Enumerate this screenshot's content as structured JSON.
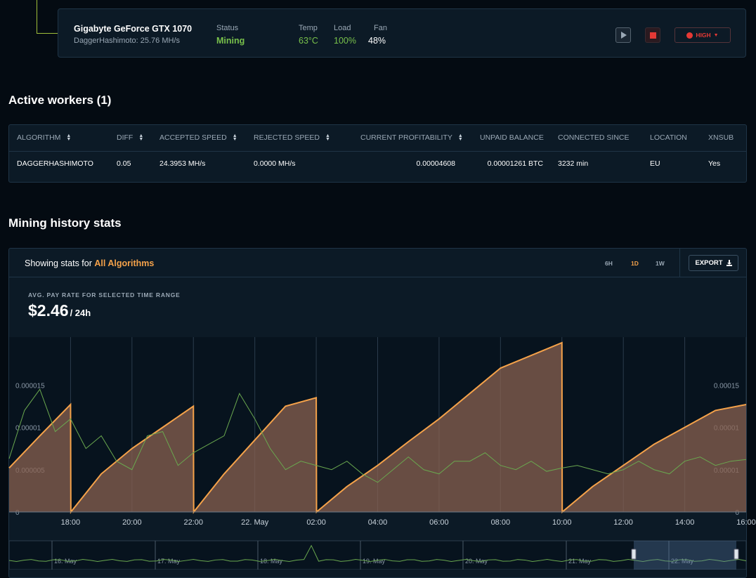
{
  "device": {
    "name": "Gigabyte GeForce GTX 1070",
    "algorithm": "DaggerHashimoto: 25.76 MH/s",
    "status_label": "Status",
    "status_value": "Mining",
    "temp_label": "Temp",
    "temp_value": "63°C",
    "load_label": "Load",
    "load_value": "100%",
    "fan_label": "Fan",
    "fan_value": "48%",
    "power_mode": "HIGH"
  },
  "workers": {
    "title": "Active workers (1)",
    "columns": [
      "ALGORITHM",
      "DIFF",
      "ACCEPTED SPEED",
      "REJECTED SPEED",
      "CURRENT PROFITABILITY",
      "UNPAID BALANCE",
      "CONNECTED SINCE",
      "LOCATION",
      "XNSUB"
    ],
    "rows": [
      [
        "DAGGERHASHIMOTO",
        "0.05",
        "24.3953 MH/s",
        "0.0000 MH/s",
        "0.00004608",
        "0.00001261 BTC",
        "3232 min",
        "EU",
        "Yes"
      ]
    ]
  },
  "history": {
    "title": "Mining history stats",
    "showing_prefix": "Showing stats for",
    "showing_value": "All Algorithms",
    "ranges": [
      "6H",
      "1D",
      "1W"
    ],
    "active_range": "1D",
    "export_label": "EXPORT",
    "avg_label": "AVG. PAY RATE FOR SELECTED TIME RANGE",
    "avg_value": "$2.46",
    "avg_unit": "/ 24h"
  },
  "colors": {
    "accent": "#f5a24a",
    "mining_green": "#78c04b",
    "danger": "#e53935",
    "card_bg": "#0c1a26"
  },
  "chart_data": {
    "type": "area",
    "x_tick_labels": [
      "18:00",
      "20:00",
      "22:00",
      "22. May",
      "02:00",
      "04:00",
      "06:00",
      "08:00",
      "10:00",
      "12:00",
      "14:00",
      "16:00"
    ],
    "y_left_tick_labels": [
      "0",
      "0.000005",
      "0.00001",
      "0.000015"
    ],
    "y_right_tick_labels": [
      "0",
      "0.00001",
      "0.00001",
      "0.00015"
    ],
    "ylim": [
      0,
      2e-05
    ],
    "series": [
      {
        "kind": "area",
        "color": "#f5a24a",
        "x": [
          16.0,
          17.0,
          18.0,
          18.01,
          19.0,
          20.0,
          21.0,
          22.0,
          22.01,
          23.0,
          24.0,
          25.0,
          26.0,
          26.01,
          27.0,
          28.0,
          29.0,
          30.0,
          31.0,
          32.0,
          34.0,
          34.01,
          35.0,
          36.0,
          37.0,
          38.0,
          39.0,
          40.0
        ],
        "y": [
          5.2e-06,
          9e-06,
          1.27e-05,
          0.0,
          4.5e-06,
          7.5e-06,
          1e-05,
          1.25e-05,
          0.0,
          4.5e-06,
          8.5e-06,
          1.25e-05,
          1.35e-05,
          0.0,
          3e-06,
          5.5e-06,
          8.3e-06,
          1.1e-05,
          1.4e-05,
          1.7e-05,
          2e-05,
          0.0,
          3e-06,
          5.5e-06,
          8e-06,
          1e-05,
          1.2e-05,
          1.27e-05
        ]
      },
      {
        "kind": "line",
        "color": "#6aa84f",
        "x": [
          16.0,
          16.5,
          17.0,
          17.5,
          18.0,
          18.5,
          19.0,
          19.5,
          20.0,
          20.5,
          21.0,
          21.5,
          22.0,
          22.5,
          23.0,
          23.5,
          24.0,
          24.5,
          25.0,
          25.5,
          26.0,
          26.5,
          27.0,
          27.5,
          28.0,
          28.5,
          29.0,
          29.5,
          30.0,
          30.5,
          31.0,
          31.5,
          32.0,
          32.5,
          33.0,
          33.5,
          34.0,
          34.5,
          35.0,
          35.5,
          36.0,
          36.5,
          37.0,
          37.5,
          38.0,
          38.5,
          39.0,
          39.5,
          40.0
        ],
        "y": [
          6.3e-06,
          1.2e-05,
          1.45e-05,
          9.5e-06,
          1.1e-05,
          7.5e-06,
          9e-06,
          6e-06,
          5e-06,
          9e-06,
          9.5e-06,
          5.5e-06,
          7e-06,
          8e-06,
          9e-06,
          1.4e-05,
          1.1e-05,
          7.5e-06,
          5e-06,
          6e-06,
          5.5e-06,
          5e-06,
          6e-06,
          4.5e-06,
          3.5e-06,
          5e-06,
          6.5e-06,
          5e-06,
          4.5e-06,
          6e-06,
          6e-06,
          7e-06,
          5.5e-06,
          5e-06,
          6e-06,
          4.8e-06,
          5.2e-06,
          5.5e-06,
          5e-06,
          4.5e-06,
          5e-06,
          6e-06,
          5e-06,
          4.5e-06,
          6e-06,
          6.5e-06,
          5.5e-06,
          6e-06,
          6.2e-06
        ]
      }
    ],
    "x_ticks_hours": [
      18,
      20,
      22,
      24,
      26,
      28,
      30,
      32,
      34,
      36,
      38,
      40
    ],
    "xlim": [
      16,
      40
    ],
    "grid": true,
    "navigator": {
      "labels": [
        "16. May",
        "17. May",
        "18. May",
        "19. May",
        "20. May",
        "21. May",
        "22. May"
      ],
      "selected_range": "last 1D"
    }
  }
}
